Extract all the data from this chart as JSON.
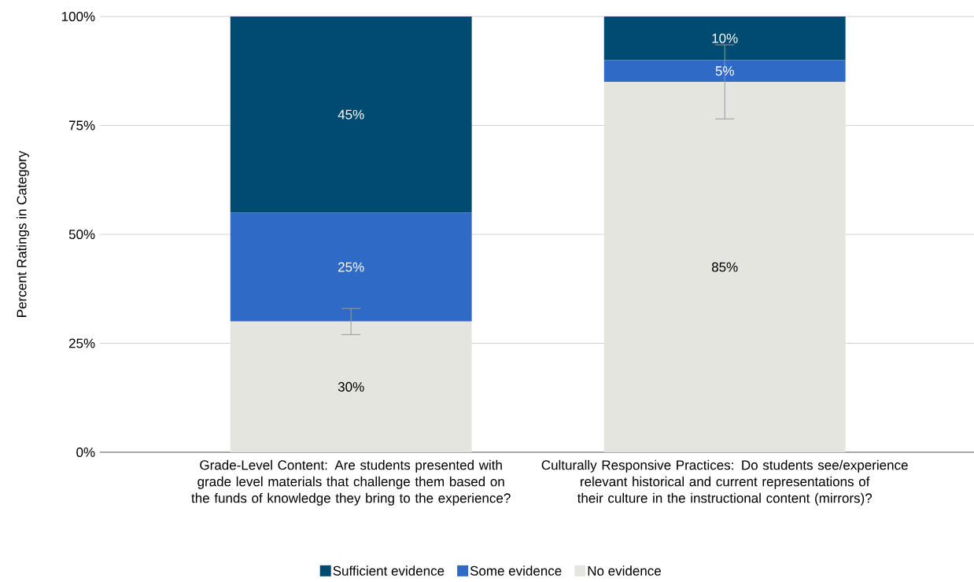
{
  "chart_data": {
    "type": "bar",
    "stacked": true,
    "ylabel": "Percent Ratings in Category",
    "categories": [
      "Grade-Level Content: Are students presented with grade level materials that challenge them based on the funds of knowledge they bring to the experience?",
      "Culturally Responsive Practices: Do students see/experience relevant historical and current representations of their culture in the instructional content (mirrors)?"
    ],
    "series": [
      {
        "name": "No evidence",
        "color": "#e5e5e0",
        "values": [
          30,
          85
        ],
        "errors": [
          3,
          8.5
        ],
        "value_labels": [
          "30%",
          "85%"
        ]
      },
      {
        "name": "Some evidence",
        "color": "#2f6ac6",
        "values": [
          25,
          5
        ],
        "value_labels": [
          "25%",
          "5%"
        ]
      },
      {
        "name": "Sufficient evidence",
        "color": "#004b71",
        "values": [
          45,
          10
        ],
        "value_labels": [
          "45%",
          "10%"
        ]
      }
    ],
    "ylim": [
      0,
      100
    ],
    "yticks": [
      {
        "value": 0,
        "label": "0%"
      },
      {
        "value": 25,
        "label": "25%"
      },
      {
        "value": 50,
        "label": "50%"
      },
      {
        "value": 75,
        "label": "75%"
      },
      {
        "value": 100,
        "label": "100%"
      }
    ],
    "grid": "y",
    "legend": "bottom"
  }
}
